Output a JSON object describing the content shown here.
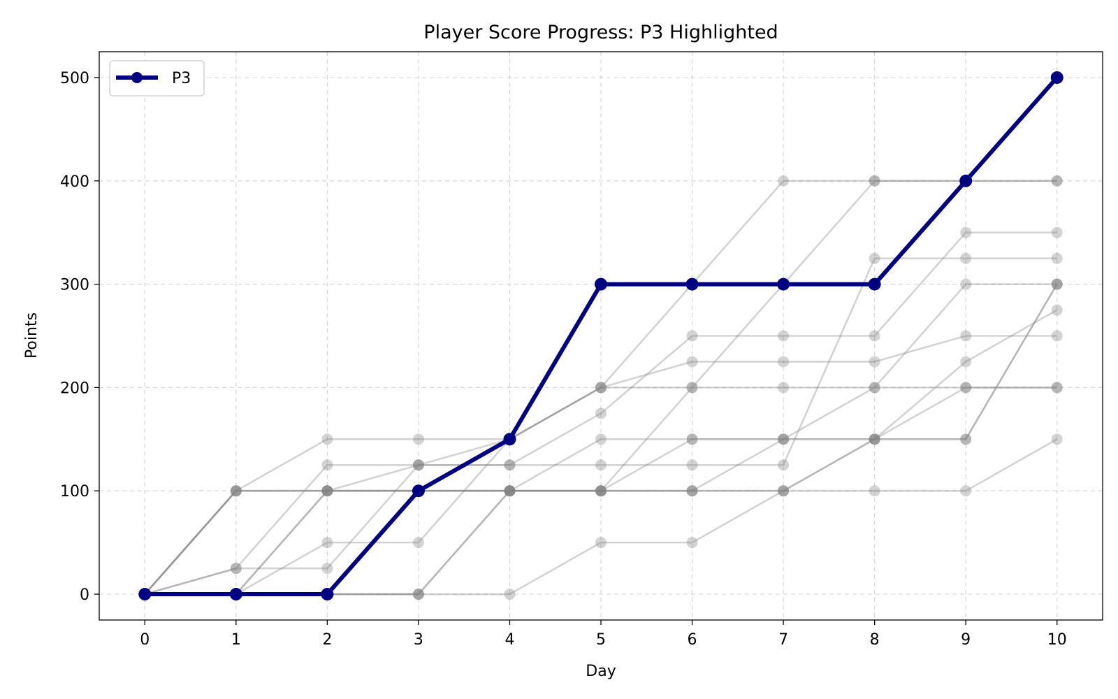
{
  "chart_data": {
    "type": "line",
    "title": "Player Score Progress: P3 Highlighted",
    "xlabel": "Day",
    "ylabel": "Points",
    "x": [
      0,
      1,
      2,
      3,
      4,
      5,
      6,
      7,
      8,
      9,
      10
    ],
    "xlim": [
      -0.5,
      10.5
    ],
    "ylim": [
      -25,
      525
    ],
    "xticks": [
      0,
      1,
      2,
      3,
      4,
      5,
      6,
      7,
      8,
      9,
      10
    ],
    "yticks": [
      0,
      100,
      200,
      300,
      400,
      500
    ],
    "grid": true,
    "legend": {
      "placement": "top-left",
      "entries": [
        "P3"
      ]
    },
    "colors": {
      "highlight": "#000080",
      "background": "#808080"
    },
    "highlight": {
      "name": "P3",
      "values": [
        0,
        0,
        0,
        100,
        150,
        300,
        300,
        300,
        300,
        400,
        500
      ]
    },
    "background_series": [
      {
        "values": [
          0,
          100,
          150,
          150,
          150,
          200,
          300,
          400,
          400,
          400,
          400
        ]
      },
      {
        "values": [
          0,
          100,
          100,
          125,
          125,
          125,
          125,
          125,
          325,
          325,
          325
        ]
      },
      {
        "values": [
          0,
          100,
          100,
          100,
          100,
          100,
          100,
          100,
          150,
          150,
          300
        ]
      },
      {
        "values": [
          0,
          25,
          125,
          125,
          125,
          175,
          250,
          250,
          250,
          350,
          350
        ]
      },
      {
        "values": [
          0,
          25,
          25,
          125,
          150,
          200,
          200,
          200,
          200,
          200,
          200
        ]
      },
      {
        "values": [
          0,
          0,
          100,
          100,
          100,
          100,
          200,
          300,
          400,
          400,
          400
        ]
      },
      {
        "values": [
          0,
          0,
          50,
          50,
          150,
          200,
          225,
          225,
          225,
          250,
          250
        ]
      },
      {
        "values": [
          0,
          0,
          0,
          0,
          100,
          150,
          150,
          150,
          150,
          200,
          200
        ]
      },
      {
        "values": [
          0,
          0,
          0,
          0,
          100,
          100,
          100,
          100,
          150,
          150,
          300
        ]
      },
      {
        "values": [
          0,
          0,
          0,
          0,
          0,
          50,
          50,
          100,
          100,
          100,
          150
        ]
      },
      {
        "values": [
          0,
          100,
          100,
          100,
          100,
          100,
          150,
          150,
          150,
          225,
          275
        ]
      },
      {
        "values": [
          0,
          0,
          100,
          100,
          100,
          100,
          100,
          150,
          200,
          300,
          300
        ]
      }
    ]
  }
}
